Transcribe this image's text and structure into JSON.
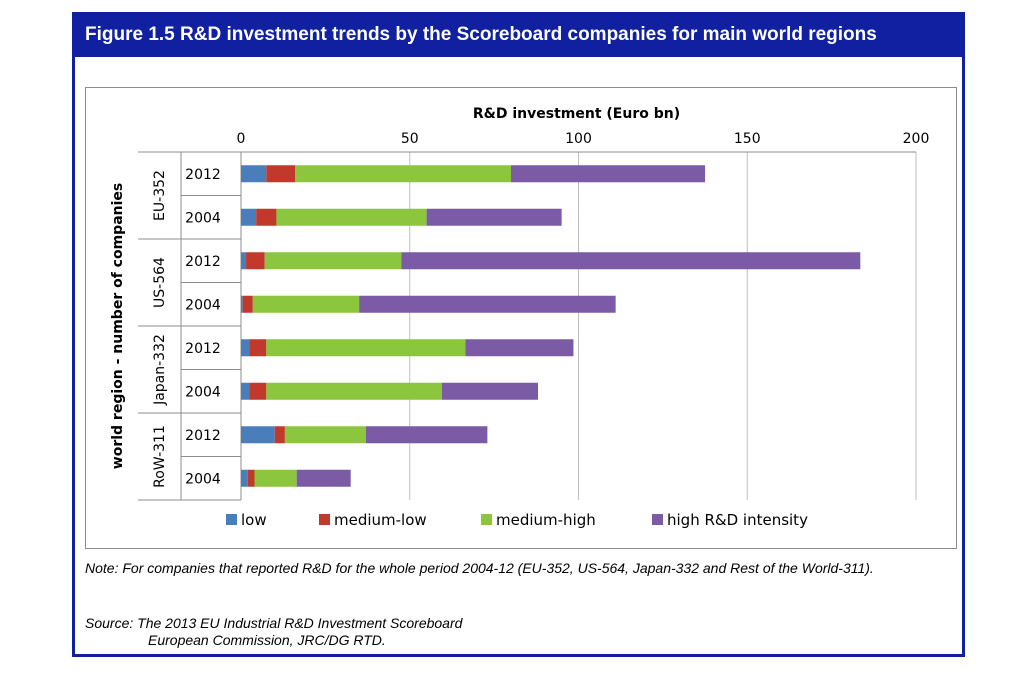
{
  "figure": {
    "title": "Figure 1.5  R&D investment trends by the Scoreboard companies for main world regions"
  },
  "chart_data": {
    "type": "bar",
    "orientation": "horizontal",
    "stacked": true,
    "title": "R&D investment (Euro bn)",
    "xlabel": "R&D investment (Euro bn)",
    "ylabel": "world region - number of companies",
    "xlim": [
      0,
      200
    ],
    "xticks": [
      0,
      50,
      100,
      150,
      200
    ],
    "grid": true,
    "legend_position": "bottom",
    "groups": [
      {
        "label": "EU-352",
        "categories": [
          "2012",
          "2004"
        ]
      },
      {
        "label": "US-564",
        "categories": [
          "2012",
          "2004"
        ]
      },
      {
        "label": "Japan-332",
        "categories": [
          "2012",
          "2004"
        ]
      },
      {
        "label": "RoW-311",
        "categories": [
          "2012",
          "2004"
        ]
      }
    ],
    "categories": [
      "EU-352 2012",
      "EU-352 2004",
      "US-564 2012",
      "US-564 2004",
      "Japan-332 2012",
      "Japan-332 2004",
      "RoW-311 2012",
      "RoW-311 2004"
    ],
    "series": [
      {
        "name": "low",
        "color": "#4a7ebb",
        "values": [
          7.5,
          4.5,
          1.5,
          0.5,
          2.5,
          2.5,
          10,
          2
        ]
      },
      {
        "name": "medium-low",
        "color": "#c0392b",
        "values": [
          8.5,
          6,
          5.5,
          3,
          5,
          5,
          3,
          2
        ]
      },
      {
        "name": "medium-high",
        "color": "#8cc63f",
        "values": [
          64,
          44.5,
          40.5,
          31.5,
          59,
          52,
          24,
          12.5
        ]
      },
      {
        "name": "high R&D intensity",
        "color": "#7b5aa6",
        "values": [
          57.5,
          40,
          136,
          76,
          32,
          28.5,
          36,
          16
        ]
      }
    ]
  },
  "note": {
    "text": "Note: For companies that reported R&D for the whole period 2004-12 (EU-352, US-564, Japan-332 and Rest of the World-311)."
  },
  "source": {
    "line1": "Source: The 2013 EU Industrial R&D Investment Scoreboard",
    "line2": "European Commission, JRC/DG RTD."
  }
}
